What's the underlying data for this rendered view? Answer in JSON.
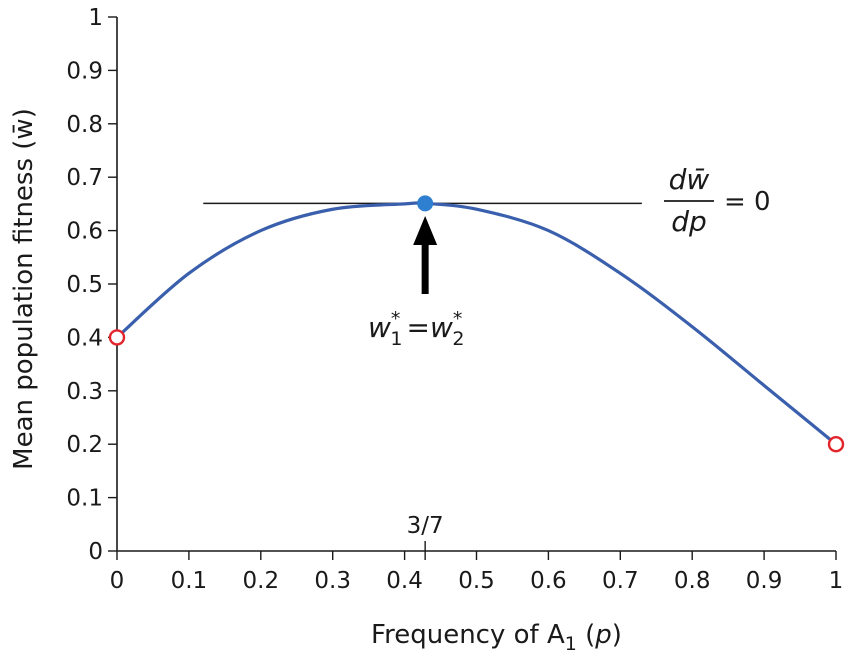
{
  "chart_data": {
    "type": "line",
    "xlabel": "Frequency of A",
    "xlabel_sub": "1",
    "xlabel_var": "p",
    "ylabel": "Mean population fitness (w̄)",
    "xlim": [
      0,
      1
    ],
    "ylim": [
      0,
      1
    ],
    "x_ticks": [
      0,
      0.1,
      0.2,
      0.3,
      0.4,
      0.5,
      0.6,
      0.7,
      0.8,
      0.9,
      1
    ],
    "x_tick_labels": [
      "0",
      "0.1",
      "0.2",
      "0.3",
      "0.4",
      "0.5",
      "0.6",
      "0.7",
      "0.8",
      "0.9",
      "1"
    ],
    "y_ticks": [
      0,
      0.1,
      0.2,
      0.3,
      0.4,
      0.5,
      0.6,
      0.7,
      0.8,
      0.9,
      1
    ],
    "y_tick_labels": [
      "0",
      "0.1",
      "0.2",
      "0.3",
      "0.4",
      "0.5",
      "0.6",
      "0.7",
      "0.8",
      "0.9",
      "1"
    ],
    "series": [
      {
        "color": "#3a5fad",
        "x": [
          0,
          0.1,
          0.2,
          0.3,
          0.4,
          0.428571,
          0.5,
          0.6,
          0.7,
          0.8,
          0.9,
          1
        ],
        "y": [
          0.4,
          0.52,
          0.6,
          0.64,
          0.65,
          0.651,
          0.64,
          0.6,
          0.52,
          0.42,
          0.31,
          0.2
        ]
      }
    ],
    "endpoints": [
      {
        "x": 0,
        "y": 0.4,
        "style": "open",
        "color": "#e3242b"
      },
      {
        "x": 1,
        "y": 0.2,
        "style": "open",
        "color": "#e3242b"
      }
    ],
    "maximum": {
      "x": 0.428571,
      "y": 0.651,
      "color": "#2e7fcf"
    },
    "tangent_line": {
      "x_from": 0.12,
      "x_to": 0.73,
      "y": 0.651
    },
    "special_tick": {
      "x": 0.428571,
      "label": "3/7"
    },
    "annotations": {
      "derivative_numerator": "dw̄",
      "derivative_denominator": "dp",
      "derivative_equals": "= 0",
      "equilibrium_label": {
        "w1": "w",
        "sub1": "1",
        "star": "*",
        "eq": "=",
        "w2": "w",
        "sub2": "2"
      }
    }
  }
}
